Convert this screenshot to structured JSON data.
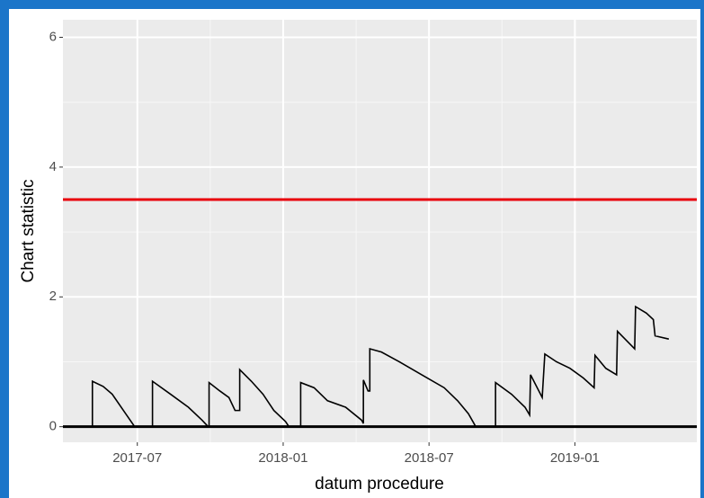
{
  "chart_data": {
    "type": "line",
    "x_label": "datum procedure",
    "y_label": "Chart statistic",
    "xlim": [
      2017.245,
      2019.418
    ],
    "xticks": [
      {
        "value": 2017.5,
        "label": "2017-07"
      },
      {
        "value": 2018.0,
        "label": "2018-01"
      },
      {
        "value": 2018.5,
        "label": "2018-07"
      },
      {
        "value": 2019.0,
        "label": "2019-01"
      }
    ],
    "ylim": [
      -0.24,
      6.27
    ],
    "yticks": [
      0,
      2,
      4,
      6
    ],
    "grid": true,
    "series": [
      {
        "color": "#000000",
        "x": [
          2017.254,
          2017.346,
          2017.346,
          2017.383,
          2017.414,
          2017.46,
          2017.491,
          2017.552,
          2017.552,
          2017.614,
          2017.675,
          2017.722,
          2017.743,
          2017.746,
          2017.746,
          2017.783,
          2017.814,
          2017.835,
          2017.851,
          2017.851,
          2017.891,
          2017.931,
          2017.968,
          2018.008,
          2018.02,
          2018.06,
          2018.06,
          2018.106,
          2018.152,
          2018.214,
          2018.269,
          2018.275,
          2018.275,
          2018.291,
          2018.297,
          2018.297,
          2018.337,
          2018.398,
          2018.475,
          2018.552,
          2018.598,
          2018.635,
          2018.654,
          2018.66,
          2018.728,
          2018.728,
          2018.783,
          2018.829,
          2018.845,
          2018.848,
          2018.888,
          2018.897,
          2018.937,
          2018.983,
          2019.029,
          2019.066,
          2019.069,
          2019.106,
          2019.143,
          2019.146,
          2019.183,
          2019.205,
          2019.208,
          2019.245,
          2019.269,
          2019.275,
          2019.322
        ],
        "values": [
          0,
          0,
          0.7,
          0.62,
          0.5,
          0.2,
          0,
          0,
          0.7,
          0.5,
          0.3,
          0.1,
          0,
          0,
          0.68,
          0.55,
          0.45,
          0.25,
          0.25,
          0.88,
          0.7,
          0.5,
          0.25,
          0.08,
          0,
          0,
          0.68,
          0.6,
          0.4,
          0.3,
          0.1,
          0.05,
          0.72,
          0.55,
          0.55,
          1.2,
          1.15,
          1.0,
          0.8,
          0.6,
          0.4,
          0.2,
          0.05,
          0,
          0,
          0.68,
          0.5,
          0.3,
          0.18,
          0.8,
          0.45,
          1.12,
          1.0,
          0.9,
          0.75,
          0.6,
          1.1,
          0.9,
          0.8,
          1.47,
          1.3,
          1.2,
          1.85,
          1.75,
          1.65,
          1.4,
          1.35
        ]
      }
    ],
    "hlines": [
      {
        "value": 3.5,
        "color": "#e8000b"
      },
      {
        "value": 0,
        "color": "#000000"
      }
    ]
  }
}
